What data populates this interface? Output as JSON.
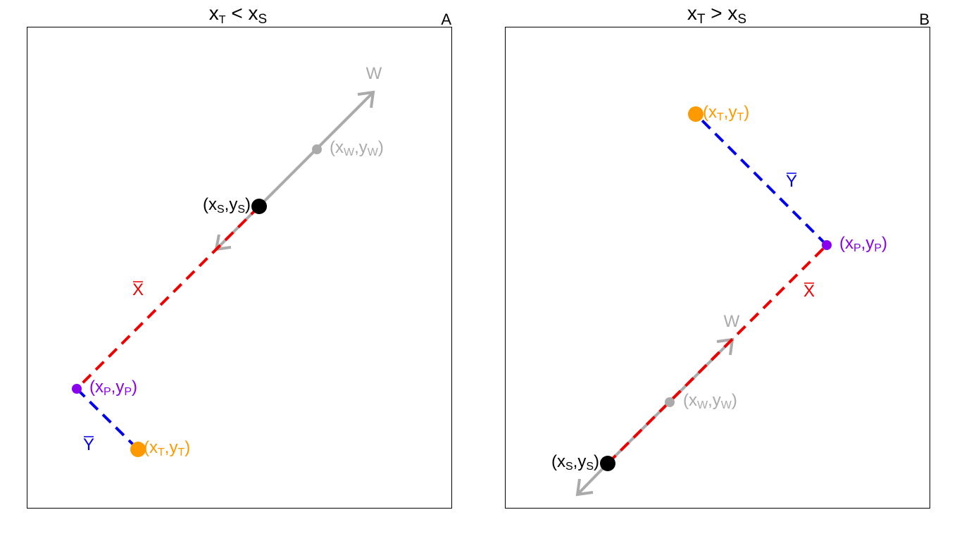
{
  "colors": {
    "grey": "#aaaaaa",
    "red": "#ee0000",
    "blue": "#0000ee",
    "purple": "#8800ee",
    "orange": "#ff9900",
    "black": "#000000"
  },
  "panel_a": {
    "title_x": "x",
    "title_x_sub": "T",
    "title_op": " < ",
    "title_s": "x",
    "title_s_sub": "S",
    "corner": "A",
    "w_label": "W",
    "xbar_label": "X",
    "ybar_label": "Y",
    "pt_w": {
      "l1": "(x",
      "s1": "W",
      "m": ",y",
      "s2": "W",
      "r": ")"
    },
    "pt_s": {
      "l1": "(x",
      "s1": "S",
      "m": ",y",
      "s2": "S",
      "r": ")"
    },
    "pt_p": {
      "l1": "(x",
      "s1": "P",
      "m": ",y",
      "s2": "P",
      "r": ")"
    },
    "pt_t": {
      "l1": "(x",
      "s1": "T",
      "m": ",y",
      "s2": "T",
      "r": ")"
    }
  },
  "panel_b": {
    "title_x": "x",
    "title_x_sub": "T",
    "title_op": " > ",
    "title_s": "x",
    "title_s_sub": "S",
    "corner": "B",
    "w_label": "W",
    "xbar_label": "X",
    "ybar_label": "Y",
    "pt_w": {
      "l1": "(x",
      "s1": "W",
      "m": ",y",
      "s2": "W",
      "r": ")"
    },
    "pt_s": {
      "l1": "(x",
      "s1": "S",
      "m": ",y",
      "s2": "S",
      "r": ")"
    },
    "pt_p": {
      "l1": "(x",
      "s1": "P",
      "m": ",y",
      "s2": "P",
      "r": ")"
    },
    "pt_t": {
      "l1": "(x",
      "s1": "T",
      "m": ",y",
      "s2": "T",
      "r": ")"
    }
  }
}
